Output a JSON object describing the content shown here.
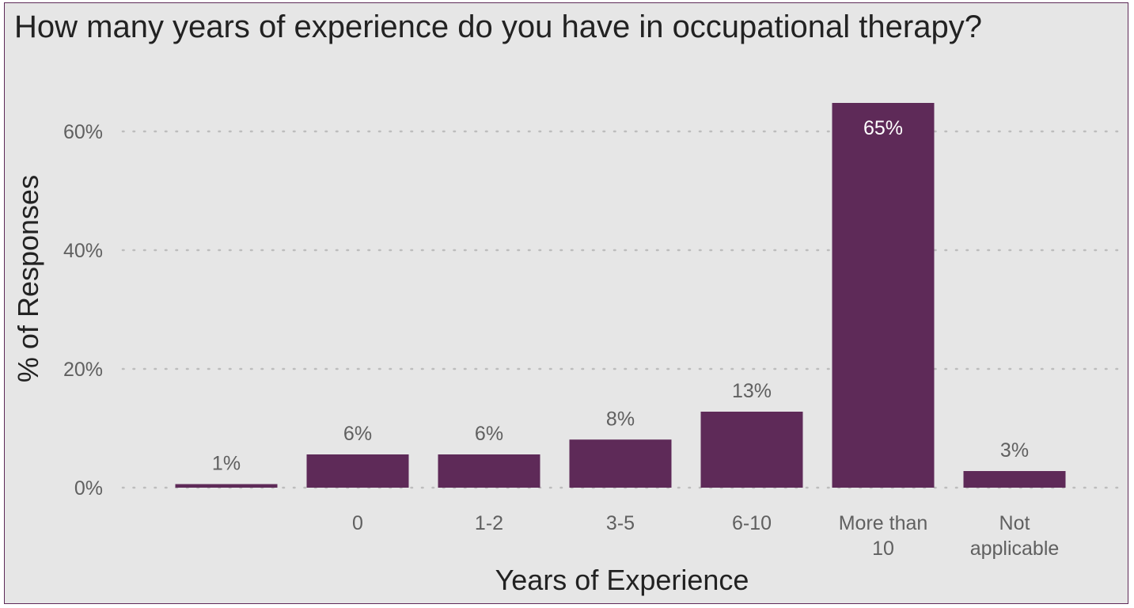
{
  "chart_data": {
    "type": "bar",
    "title": "How many years of experience do you have in occupational therapy?",
    "xlabel": "Years of Experience",
    "ylabel": "% of Responses",
    "categories": [
      "",
      "0",
      "1-2",
      "3-5",
      "6-10",
      "More than 10",
      "Not applicable"
    ],
    "values": [
      0.6,
      5.6,
      5.6,
      8.1,
      12.8,
      64.8,
      2.8
    ],
    "data_labels": [
      "1%",
      "6%",
      "6%",
      "8%",
      "13%",
      "65%",
      "3%"
    ],
    "ylim": [
      0,
      65
    ],
    "yticks": [
      0,
      20,
      40,
      60
    ],
    "ytick_labels": [
      "0%",
      "20%",
      "40%",
      "60%"
    ],
    "grid": "horizontal dotted",
    "bar_color": "#5e2a58",
    "background": "#e6e6e6"
  }
}
